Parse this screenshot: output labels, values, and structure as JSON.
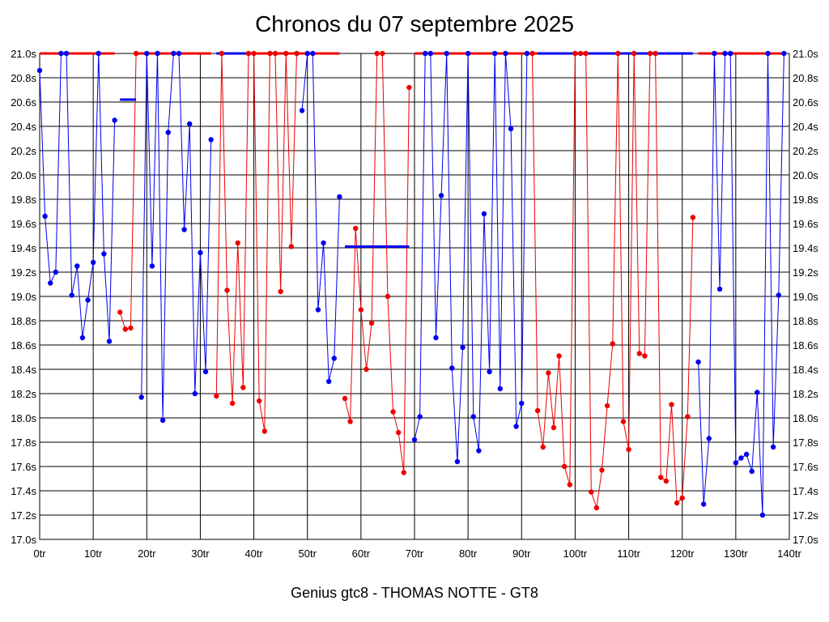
{
  "chart_data": {
    "type": "line",
    "title": "Chronos du 07 septembre 2025",
    "footer": "Genius gtc8 - THOMAS NOTTE - GT8",
    "xlabel": "",
    "ylabel": "",
    "xlim": [
      0,
      140
    ],
    "ylim": [
      17.0,
      21.0
    ],
    "x_ticks": [
      0,
      10,
      20,
      30,
      40,
      50,
      60,
      70,
      80,
      90,
      100,
      110,
      120,
      130,
      140
    ],
    "x_tick_labels": [
      "0tr",
      "10tr",
      "20tr",
      "30tr",
      "40tr",
      "50tr",
      "60tr",
      "70tr",
      "80tr",
      "90tr",
      "100tr",
      "110tr",
      "120tr",
      "130tr",
      "140tr"
    ],
    "y_ticks": [
      17.0,
      17.2,
      17.4,
      17.6,
      17.8,
      18.0,
      18.2,
      18.4,
      18.6,
      18.8,
      19.0,
      19.2,
      19.4,
      19.6,
      19.8,
      20.0,
      20.2,
      20.4,
      20.6,
      20.8,
      21.0
    ],
    "y_tick_labels": [
      "17.0s",
      "17.2s",
      "17.4s",
      "17.6s",
      "17.8s",
      "18.0s",
      "18.2s",
      "18.4s",
      "18.6s",
      "18.8s",
      "19.0s",
      "19.2s",
      "19.4s",
      "19.6s",
      "19.8s",
      "20.0s",
      "20.2s",
      "20.4s",
      "20.6s",
      "20.8s",
      "21.0s"
    ],
    "grid": true,
    "colors": {
      "blue": "#0000ee",
      "red": "#ee0000",
      "grid": "#000000",
      "background": "#ffffff"
    },
    "series": [
      {
        "color": "blue",
        "points": [
          [
            0,
            20.86
          ],
          [
            1,
            19.66
          ],
          [
            2,
            19.11
          ],
          [
            3,
            19.2
          ],
          [
            4,
            21.0
          ],
          [
            5,
            21.0
          ],
          [
            6,
            19.01
          ],
          [
            7,
            19.25
          ],
          [
            8,
            18.66
          ],
          [
            9,
            18.97
          ],
          [
            10,
            19.28
          ],
          [
            11,
            21.0
          ],
          [
            12,
            19.35
          ],
          [
            13,
            18.63
          ],
          [
            14,
            20.45
          ]
        ]
      },
      {
        "color": "red",
        "points": [
          [
            15,
            18.87
          ],
          [
            16,
            18.73
          ],
          [
            17,
            18.74
          ],
          [
            18,
            21.0
          ]
        ]
      },
      {
        "color": "blue",
        "points": [
          [
            19,
            18.17
          ],
          [
            20,
            21.0
          ],
          [
            21,
            19.25
          ],
          [
            22,
            21.0
          ],
          [
            23,
            17.98
          ],
          [
            24,
            20.35
          ],
          [
            25,
            21.0
          ],
          [
            26,
            21.0
          ],
          [
            27,
            19.55
          ],
          [
            28,
            20.42
          ],
          [
            29,
            18.2
          ],
          [
            30,
            19.36
          ],
          [
            31,
            18.38
          ],
          [
            32,
            20.29
          ]
        ]
      },
      {
        "color": "red",
        "points": [
          [
            33,
            18.18
          ],
          [
            34,
            21.0
          ],
          [
            35,
            19.05
          ],
          [
            36,
            18.12
          ],
          [
            37,
            19.44
          ],
          [
            38,
            18.25
          ],
          [
            39,
            21.0
          ],
          [
            40,
            21.0
          ],
          [
            41,
            18.14
          ],
          [
            42,
            17.89
          ],
          [
            43,
            21.0
          ],
          [
            44,
            21.0
          ],
          [
            45,
            19.04
          ],
          [
            46,
            21.0
          ],
          [
            47,
            19.41
          ],
          [
            48,
            21.0
          ]
        ]
      },
      {
        "color": "blue",
        "points": [
          [
            49,
            20.53
          ],
          [
            50,
            21.0
          ],
          [
            51,
            21.0
          ],
          [
            52,
            18.89
          ],
          [
            53,
            19.44
          ],
          [
            54,
            18.3
          ],
          [
            55,
            18.49
          ],
          [
            56,
            19.82
          ]
        ]
      },
      {
        "color": "red",
        "points": [
          [
            57,
            18.16
          ],
          [
            58,
            17.97
          ],
          [
            59,
            19.56
          ],
          [
            60,
            18.89
          ],
          [
            61,
            18.4
          ],
          [
            62,
            18.78
          ],
          [
            63,
            21.0
          ],
          [
            64,
            21.0
          ],
          [
            65,
            19.0
          ],
          [
            66,
            18.05
          ],
          [
            67,
            17.88
          ],
          [
            68,
            17.55
          ],
          [
            69,
            20.72
          ]
        ]
      },
      {
        "color": "blue",
        "points": [
          [
            70,
            17.82
          ],
          [
            71,
            18.01
          ],
          [
            72,
            21.0
          ],
          [
            73,
            21.0
          ],
          [
            74,
            18.66
          ],
          [
            75,
            19.83
          ],
          [
            76,
            21.0
          ],
          [
            77,
            18.41
          ],
          [
            78,
            17.64
          ],
          [
            79,
            18.58
          ],
          [
            80,
            21.0
          ],
          [
            81,
            18.01
          ],
          [
            82,
            17.73
          ],
          [
            83,
            19.68
          ],
          [
            84,
            18.38
          ],
          [
            85,
            21.0
          ],
          [
            86,
            18.24
          ],
          [
            87,
            21.0
          ],
          [
            88,
            20.38
          ],
          [
            89,
            17.93
          ],
          [
            90,
            18.12
          ],
          [
            91,
            21.0
          ]
        ]
      },
      {
        "color": "red",
        "points": [
          [
            92,
            21.0
          ],
          [
            93,
            18.06
          ],
          [
            94,
            17.76
          ],
          [
            95,
            18.37
          ],
          [
            96,
            17.92
          ],
          [
            97,
            18.51
          ],
          [
            98,
            17.6
          ],
          [
            99,
            17.45
          ],
          [
            100,
            21.0
          ],
          [
            101,
            21.0
          ],
          [
            102,
            21.0
          ],
          [
            103,
            17.39
          ],
          [
            104,
            17.26
          ],
          [
            105,
            17.57
          ],
          [
            106,
            18.1
          ],
          [
            107,
            18.61
          ],
          [
            108,
            21.0
          ],
          [
            109,
            17.97
          ],
          [
            110,
            17.74
          ],
          [
            111,
            21.0
          ],
          [
            112,
            18.53
          ],
          [
            113,
            18.51
          ],
          [
            114,
            21.0
          ],
          [
            115,
            21.0
          ],
          [
            116,
            17.51
          ],
          [
            117,
            17.48
          ],
          [
            118,
            18.11
          ],
          [
            119,
            17.3
          ],
          [
            120,
            17.34
          ],
          [
            121,
            18.01
          ],
          [
            122,
            19.65
          ]
        ]
      },
      {
        "color": "blue",
        "points": [
          [
            123,
            18.46
          ],
          [
            124,
            17.29
          ],
          [
            125,
            17.83
          ],
          [
            126,
            21.0
          ],
          [
            127,
            19.06
          ],
          [
            128,
            21.0
          ],
          [
            129,
            21.0
          ],
          [
            130,
            17.63
          ],
          [
            131,
            17.67
          ],
          [
            132,
            17.7
          ],
          [
            133,
            17.56
          ],
          [
            134,
            18.21
          ],
          [
            135,
            17.2
          ],
          [
            136,
            21.0
          ],
          [
            137,
            17.76
          ],
          [
            138,
            19.01
          ],
          [
            139,
            21.0
          ]
        ]
      }
    ],
    "capped_segments": [
      {
        "color": "red",
        "x": [
          0,
          14
        ]
      },
      {
        "color": "red",
        "x": [
          18,
          32
        ]
      },
      {
        "color": "blue",
        "x": [
          33,
          39
        ]
      },
      {
        "color": "red",
        "x": [
          39,
          56
        ]
      },
      {
        "color": "red",
        "x": [
          70,
          93
        ]
      },
      {
        "color": "blue",
        "x": [
          93,
          122
        ]
      },
      {
        "color": "red",
        "x": [
          123,
          139
        ]
      }
    ],
    "average_markers": [
      {
        "color": "blue",
        "x": [
          15,
          18
        ],
        "y": 20.62
      },
      {
        "color": "blue",
        "x": [
          57,
          69
        ],
        "y": 19.41
      }
    ]
  }
}
